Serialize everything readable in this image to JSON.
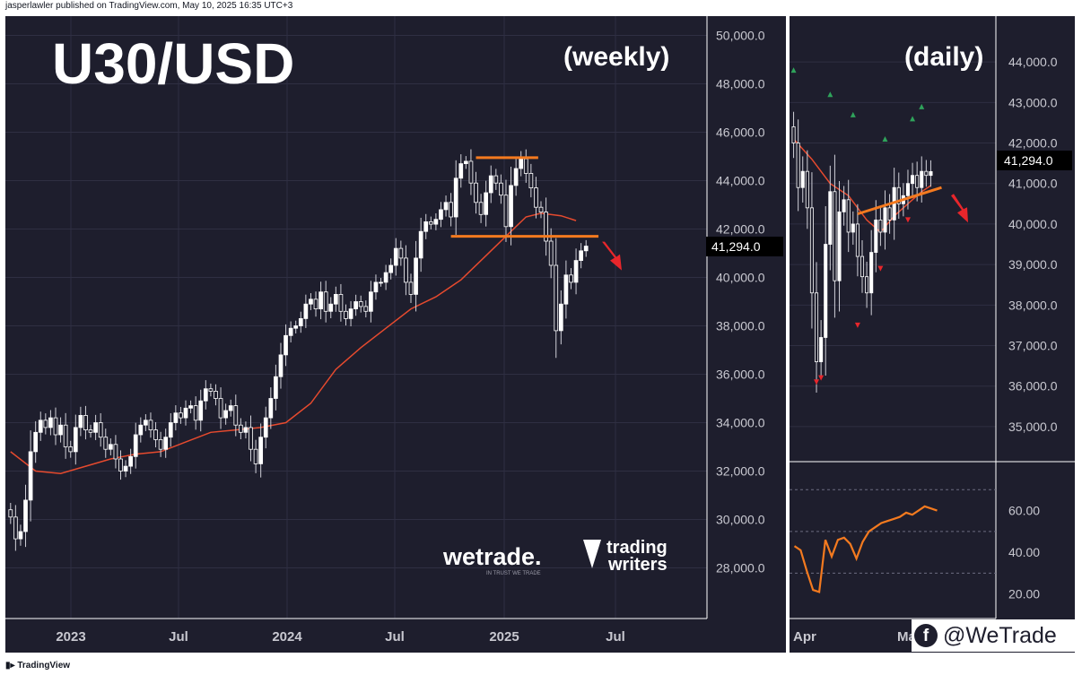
{
  "header": {
    "publisher": "jasperlawler published on TradingView.com, May 10, 2025 16:35 UTC+3"
  },
  "footer": {
    "brand": "TradingView"
  },
  "social": {
    "handle": "@WeTrade"
  },
  "logos": {
    "wetrade": "wetrade.",
    "wetrade_tag": "IN TRUST WE TRADE",
    "tw_line1": "trading",
    "tw_line2": "writers"
  },
  "colors": {
    "bg": "#1e1e2d",
    "bull": "#ffffff",
    "bear": "#ffffff",
    "ma": "#e64a2e",
    "level": "#f47a1f",
    "arrow": "#e8262b",
    "rsi": "#f47a1f",
    "up_marker": "#2fa35b",
    "down_marker": "#e8262b"
  },
  "chart_data": [
    {
      "type": "candlestick",
      "title": "U30/USD",
      "subtitle": "(weekly)",
      "timeframe": "weekly",
      "x_ticks": [
        "2023",
        "Jul",
        "2024",
        "Jul",
        "2025",
        "Jul"
      ],
      "y_ticks": [
        "28,000.0",
        "30,000.0",
        "32,000.0",
        "34,000.0",
        "36,000.0",
        "38,000.0",
        "40,000.0",
        "42,000.0",
        "44,000.0",
        "46,000.0",
        "48,000.0",
        "50,000.0"
      ],
      "ylim": [
        26500,
        50500
      ],
      "last_price_label": "41,294.0",
      "last_price": 41294,
      "moving_average": true,
      "closes": [
        30100,
        29200,
        29500,
        30800,
        32800,
        33600,
        34100,
        33800,
        34200,
        33500,
        33900,
        33000,
        32800,
        33800,
        34300,
        33700,
        33600,
        34000,
        33400,
        32900,
        33100,
        32500,
        32000,
        32200,
        32600,
        33500,
        33900,
        34100,
        33700,
        33300,
        32900,
        33400,
        34000,
        34400,
        34200,
        34600,
        34700,
        34100,
        34900,
        35400,
        35300,
        35000,
        34200,
        34500,
        34700,
        33900,
        33600,
        33800,
        32900,
        32300,
        33400,
        34200,
        35000,
        35900,
        36800,
        37600,
        37900,
        38000,
        38300,
        38900,
        39100,
        38700,
        39400,
        38600,
        38900,
        39300,
        38600,
        38300,
        38700,
        39000,
        38800,
        38600,
        39400,
        39800,
        39800,
        40200,
        40500,
        41200,
        40800,
        39800,
        39300,
        40800,
        41900,
        42300,
        42200,
        42400,
        42800,
        43100,
        42500,
        44100,
        44700,
        44800,
        43900,
        43100,
        42600,
        43500,
        44200,
        43900,
        43400,
        42100,
        43800,
        44500,
        44900,
        44300,
        43700,
        42900,
        42700,
        41500,
        40500,
        37800,
        38900,
        40100,
        39800,
        40700,
        41100,
        41294
      ],
      "ma_points": [
        [
          0,
          32800
        ],
        [
          5,
          32000
        ],
        [
          10,
          31900
        ],
        [
          15,
          32200
        ],
        [
          20,
          32500
        ],
        [
          25,
          32700
        ],
        [
          30,
          32800
        ],
        [
          35,
          33200
        ],
        [
          40,
          33600
        ],
        [
          45,
          33700
        ],
        [
          50,
          33800
        ],
        [
          55,
          34000
        ],
        [
          60,
          34800
        ],
        [
          65,
          36200
        ],
        [
          70,
          37100
        ],
        [
          75,
          37900
        ],
        [
          80,
          38700
        ],
        [
          85,
          39200
        ],
        [
          90,
          39900
        ],
        [
          95,
          40900
        ],
        [
          100,
          41900
        ],
        [
          103,
          42500
        ],
        [
          106,
          42650
        ],
        [
          110,
          42550
        ],
        [
          113,
          42350
        ]
      ],
      "resistance": 44950,
      "support": 41700
    },
    {
      "type": "candlestick",
      "title": "",
      "subtitle": "(daily)",
      "timeframe": "daily",
      "x_ticks": [
        "Apr",
        "May"
      ],
      "y_ticks": [
        "35,000.0",
        "36,000.0",
        "37,000.0",
        "38,000.0",
        "39,000.0",
        "40,000.0",
        "41,000.0",
        "42,000.0",
        "43,000.0",
        "44,000.0"
      ],
      "ylim": [
        34600,
        44600
      ],
      "last_price_label": "41,294.0",
      "last_price": 41294,
      "closes": [
        42000,
        40900,
        41300,
        40400,
        38300,
        36600,
        37200,
        39500,
        40800,
        38600,
        40300,
        40600,
        39800,
        40000,
        39200,
        38700,
        38300,
        39300,
        40100,
        39800,
        40400,
        40100,
        40900,
        40500,
        40700,
        41000,
        41200,
        40900,
        41300,
        41200,
        41294
      ],
      "ma_points": [
        [
          0,
          42100
        ],
        [
          4,
          41600
        ],
        [
          8,
          41000
        ],
        [
          12,
          40700
        ],
        [
          16,
          40100
        ],
        [
          19,
          39800
        ],
        [
          22,
          40200
        ],
        [
          25,
          40500
        ],
        [
          28,
          40800
        ],
        [
          30,
          40950
        ]
      ],
      "trendline": [
        [
          19,
          40300
        ],
        [
          32,
          40850
        ]
      ],
      "rsi": {
        "y_ticks": [
          "20.00",
          "40.00",
          "60.00"
        ],
        "ylim": [
          10,
          80
        ],
        "values": [
          43,
          41,
          31,
          22,
          21,
          46,
          38,
          46,
          47,
          44,
          37,
          45,
          50,
          52,
          54,
          55,
          56,
          57,
          59,
          58,
          60,
          62,
          61,
          60
        ]
      }
    }
  ]
}
